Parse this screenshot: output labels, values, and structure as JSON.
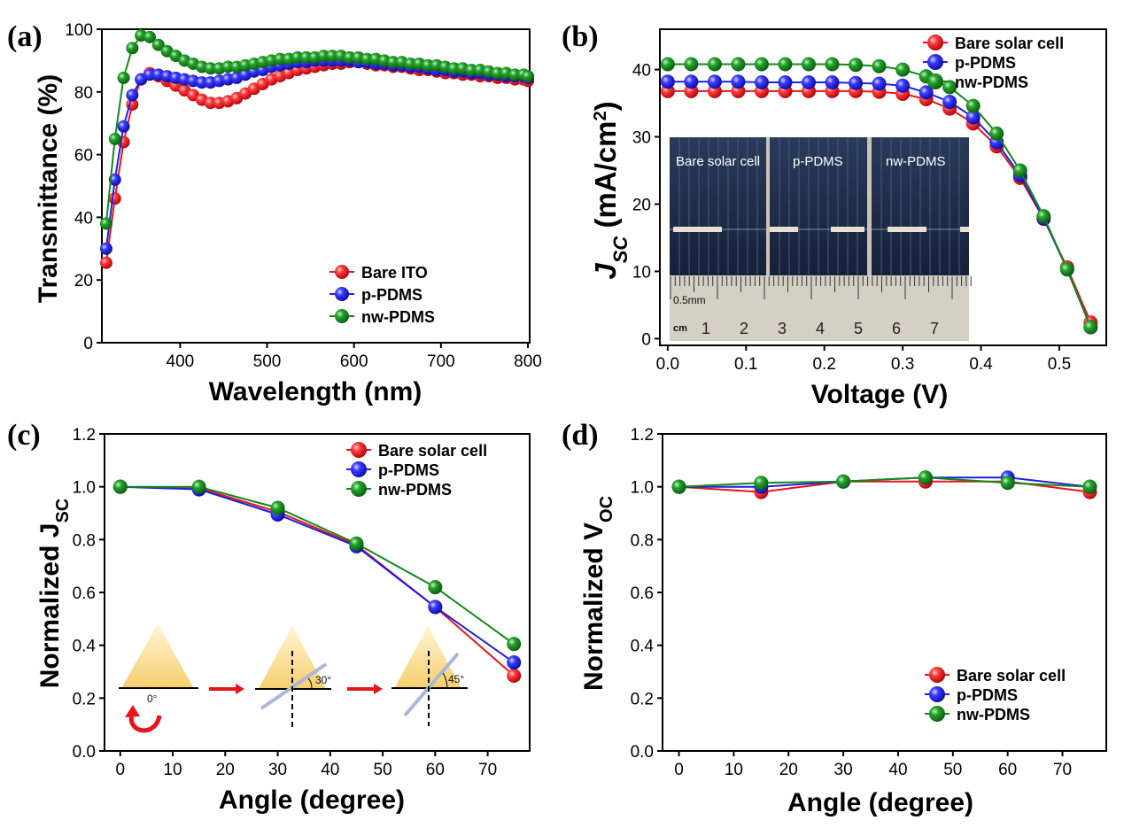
{
  "colors": {
    "red": "#e8141a",
    "blue": "#1f1fe0",
    "green": "#13881a"
  },
  "panels": {
    "a": {
      "label": "(a)",
      "xlabel": "Wavelength (nm)",
      "ylabel": "Transmittance (%)",
      "legend": [
        "Bare ITO",
        "p-PDMS",
        "nw-PDMS"
      ]
    },
    "b": {
      "label": "(b)",
      "xlabel": "Voltage (V)",
      "ylabel_main": "J",
      "ylabel_sub": "SC",
      "ylabel_rest": " (mA/cm",
      "ylabel_sup": "2",
      "ylabel_end": ")",
      "legend": [
        "Bare solar cell",
        "p-PDMS",
        "nw-PDMS"
      ],
      "inset": {
        "cell_labels": [
          "Bare solar cell",
          "p-PDMS",
          "nw-PDMS"
        ],
        "ruler_unit": "cm",
        "ruler_small": "0.5mm",
        "ruler_numbers": [
          "1",
          "2",
          "3",
          "4",
          "5",
          "6",
          "7"
        ]
      }
    },
    "c": {
      "label": "(c)",
      "xlabel": "Angle (degree)",
      "ylabel_main": "Normalized J",
      "ylabel_sub": "SC",
      "legend": [
        "Bare solar cell",
        "p-PDMS",
        "nw-PDMS"
      ],
      "inset": {
        "angles": [
          "0°",
          "30°",
          "45°"
        ]
      }
    },
    "d": {
      "label": "(d)",
      "xlabel": "Angle (degree)",
      "ylabel_main": "Normalized V",
      "ylabel_sub": "OC",
      "legend": [
        "Bare solar cell",
        "p-PDMS",
        "nw-PDMS"
      ]
    }
  },
  "chart_data": [
    {
      "panel": "a",
      "type": "line",
      "xlabel": "Wavelength (nm)",
      "ylabel": "Transmittance (%)",
      "xlim": [
        310,
        802
      ],
      "ylim": [
        0,
        100
      ],
      "xticks": [
        400,
        500,
        600,
        700,
        800
      ],
      "yticks": [
        0,
        20,
        40,
        60,
        80,
        100
      ],
      "legend_position": "bottom-right",
      "series": [
        {
          "name": "Bare ITO",
          "color": "red",
          "x": [
            315,
            325,
            335,
            345,
            355,
            365,
            375,
            385,
            395,
            405,
            415,
            425,
            435,
            445,
            455,
            465,
            475,
            485,
            495,
            505,
            515,
            525,
            535,
            545,
            555,
            565,
            575,
            585,
            595,
            605,
            615,
            625,
            635,
            645,
            655,
            665,
            675,
            685,
            695,
            705,
            715,
            725,
            735,
            745,
            755,
            765,
            775,
            785,
            795,
            800
          ],
          "y": [
            25.5,
            46,
            64,
            76,
            84,
            86,
            85,
            83.5,
            82,
            80.5,
            79,
            77.5,
            76.5,
            76.5,
            77,
            78,
            79.5,
            81,
            82.5,
            84,
            85,
            86,
            87,
            87.5,
            88,
            88.5,
            89,
            89,
            89.5,
            89.5,
            89,
            88.5,
            88.5,
            88,
            88,
            87.5,
            87,
            87,
            86.5,
            86,
            86,
            85.5,
            85.5,
            85,
            85,
            84.5,
            84.5,
            84,
            84,
            83.5
          ]
        },
        {
          "name": "p-PDMS",
          "color": "blue",
          "x": [
            315,
            325,
            335,
            345,
            355,
            365,
            375,
            385,
            395,
            405,
            415,
            425,
            435,
            445,
            455,
            465,
            475,
            485,
            495,
            505,
            515,
            525,
            535,
            545,
            555,
            565,
            575,
            585,
            595,
            605,
            615,
            625,
            635,
            645,
            655,
            665,
            675,
            685,
            695,
            705,
            715,
            725,
            735,
            745,
            755,
            765,
            775,
            785,
            795,
            800
          ],
          "y": [
            30,
            52,
            69,
            79,
            84,
            85.5,
            85.5,
            85,
            84.5,
            84,
            83.5,
            83,
            83,
            83.5,
            84,
            84.5,
            85.5,
            86.5,
            87,
            88,
            88.5,
            89,
            89.5,
            89.5,
            90,
            90,
            90,
            90,
            90,
            89.5,
            89.5,
            89,
            89,
            88.5,
            88.5,
            88,
            88,
            87.5,
            87,
            87,
            86.5,
            86.5,
            86,
            86,
            85.5,
            85.5,
            85,
            85,
            85,
            84.5
          ]
        },
        {
          "name": "nw-PDMS",
          "color": "green",
          "x": [
            315,
            325,
            335,
            345,
            355,
            365,
            375,
            385,
            395,
            405,
            415,
            425,
            435,
            445,
            455,
            465,
            475,
            485,
            495,
            505,
            515,
            525,
            535,
            545,
            555,
            565,
            575,
            585,
            595,
            605,
            615,
            625,
            635,
            645,
            655,
            665,
            675,
            685,
            695,
            705,
            715,
            725,
            735,
            745,
            755,
            765,
            775,
            785,
            795,
            800
          ],
          "y": [
            38,
            65,
            84.5,
            94,
            98,
            97.5,
            95,
            93,
            91.5,
            90,
            89,
            88,
            87.5,
            87.5,
            88,
            88,
            88.5,
            89,
            89.5,
            90,
            90.5,
            90.5,
            91,
            91,
            91,
            91.5,
            91.5,
            91.5,
            91,
            91,
            90.5,
            90.5,
            90,
            89.5,
            89.5,
            89,
            89,
            88.5,
            88.5,
            88,
            87.5,
            87.5,
            87,
            87,
            86.5,
            86,
            86,
            85.5,
            85.5,
            85
          ]
        }
      ]
    },
    {
      "panel": "b",
      "type": "line",
      "xlabel": "Voltage (V)",
      "ylabel": "J_SC (mA/cm^2)",
      "xlim": [
        -0.01,
        0.56
      ],
      "ylim": [
        -1,
        46
      ],
      "xticks": [
        0.0,
        0.1,
        0.2,
        0.3,
        0.4,
        0.5
      ],
      "yticks": [
        0,
        10,
        20,
        30,
        40
      ],
      "legend_position": "top-right",
      "series": [
        {
          "name": "Bare solar cell",
          "color": "red",
          "x": [
            0.0,
            0.03,
            0.06,
            0.09,
            0.12,
            0.15,
            0.18,
            0.21,
            0.24,
            0.27,
            0.3,
            0.33,
            0.36,
            0.39,
            0.42,
            0.45,
            0.48,
            0.51,
            0.54
          ],
          "y": [
            36.8,
            36.8,
            36.8,
            36.8,
            36.8,
            36.8,
            36.8,
            36.8,
            36.8,
            36.7,
            36.4,
            35.6,
            34.2,
            32.0,
            28.6,
            23.9,
            17.8,
            10.6,
            2.4
          ]
        },
        {
          "name": "p-PDMS",
          "color": "blue",
          "x": [
            0.0,
            0.03,
            0.06,
            0.09,
            0.12,
            0.15,
            0.18,
            0.21,
            0.24,
            0.27,
            0.3,
            0.33,
            0.36,
            0.39,
            0.42,
            0.45,
            0.48,
            0.51,
            0.54
          ],
          "y": [
            38.2,
            38.2,
            38.2,
            38.2,
            38.1,
            38.1,
            38.1,
            38.1,
            38.0,
            37.9,
            37.6,
            36.6,
            35.2,
            32.9,
            29.2,
            24.3,
            17.9,
            10.3,
            1.7
          ]
        },
        {
          "name": "nw-PDMS",
          "color": "green",
          "x": [
            0.0,
            0.03,
            0.06,
            0.09,
            0.12,
            0.15,
            0.18,
            0.21,
            0.24,
            0.27,
            0.3,
            0.33,
            0.36,
            0.39,
            0.42,
            0.45,
            0.48,
            0.51,
            0.54
          ],
          "y": [
            40.8,
            40.8,
            40.8,
            40.8,
            40.8,
            40.8,
            40.8,
            40.8,
            40.7,
            40.5,
            40.0,
            39.0,
            37.4,
            34.6,
            30.5,
            25.0,
            18.2,
            10.3,
            1.7
          ]
        }
      ]
    },
    {
      "panel": "c",
      "type": "line",
      "xlabel": "Angle (degree)",
      "ylabel": "Normalized J_SC",
      "xlim": [
        -3,
        78
      ],
      "ylim": [
        0.0,
        1.2
      ],
      "xticks": [
        0,
        10,
        20,
        30,
        40,
        50,
        60,
        70
      ],
      "yticks": [
        0.0,
        0.2,
        0.4,
        0.6,
        0.8,
        1.0,
        1.2
      ],
      "legend_position": "top-right",
      "series": [
        {
          "name": "Bare solar cell",
          "color": "red",
          "x": [
            0,
            15,
            30,
            45,
            60,
            75
          ],
          "y": [
            1.0,
            0.995,
            0.905,
            0.78,
            0.545,
            0.285
          ]
        },
        {
          "name": "p-PDMS",
          "color": "blue",
          "x": [
            0,
            15,
            30,
            45,
            60,
            75
          ],
          "y": [
            1.0,
            0.99,
            0.895,
            0.775,
            0.545,
            0.335
          ]
        },
        {
          "name": "nw-PDMS",
          "color": "green",
          "x": [
            0,
            15,
            30,
            45,
            60,
            75
          ],
          "y": [
            1.0,
            1.0,
            0.92,
            0.785,
            0.62,
            0.405
          ]
        }
      ]
    },
    {
      "panel": "d",
      "type": "line",
      "xlabel": "Angle (degree)",
      "ylabel": "Normalized V_OC",
      "xlim": [
        -3,
        78
      ],
      "ylim": [
        0.0,
        1.2
      ],
      "xticks": [
        0,
        10,
        20,
        30,
        40,
        50,
        60,
        70
      ],
      "yticks": [
        0.0,
        0.2,
        0.4,
        0.6,
        0.8,
        1.0,
        1.2
      ],
      "legend_position": "bottom-right",
      "series": [
        {
          "name": "Bare solar cell",
          "color": "red",
          "x": [
            0,
            15,
            30,
            45,
            60,
            75
          ],
          "y": [
            1.0,
            0.98,
            1.02,
            1.02,
            1.02,
            0.98
          ]
        },
        {
          "name": "p-PDMS",
          "color": "blue",
          "x": [
            0,
            15,
            30,
            45,
            60,
            75
          ],
          "y": [
            1.0,
            1.0,
            1.02,
            1.035,
            1.035,
            1.0
          ]
        },
        {
          "name": "nw-PDMS",
          "color": "green",
          "x": [
            0,
            15,
            30,
            45,
            60,
            75
          ],
          "y": [
            1.0,
            1.015,
            1.02,
            1.035,
            1.015,
            1.0
          ]
        }
      ]
    }
  ]
}
